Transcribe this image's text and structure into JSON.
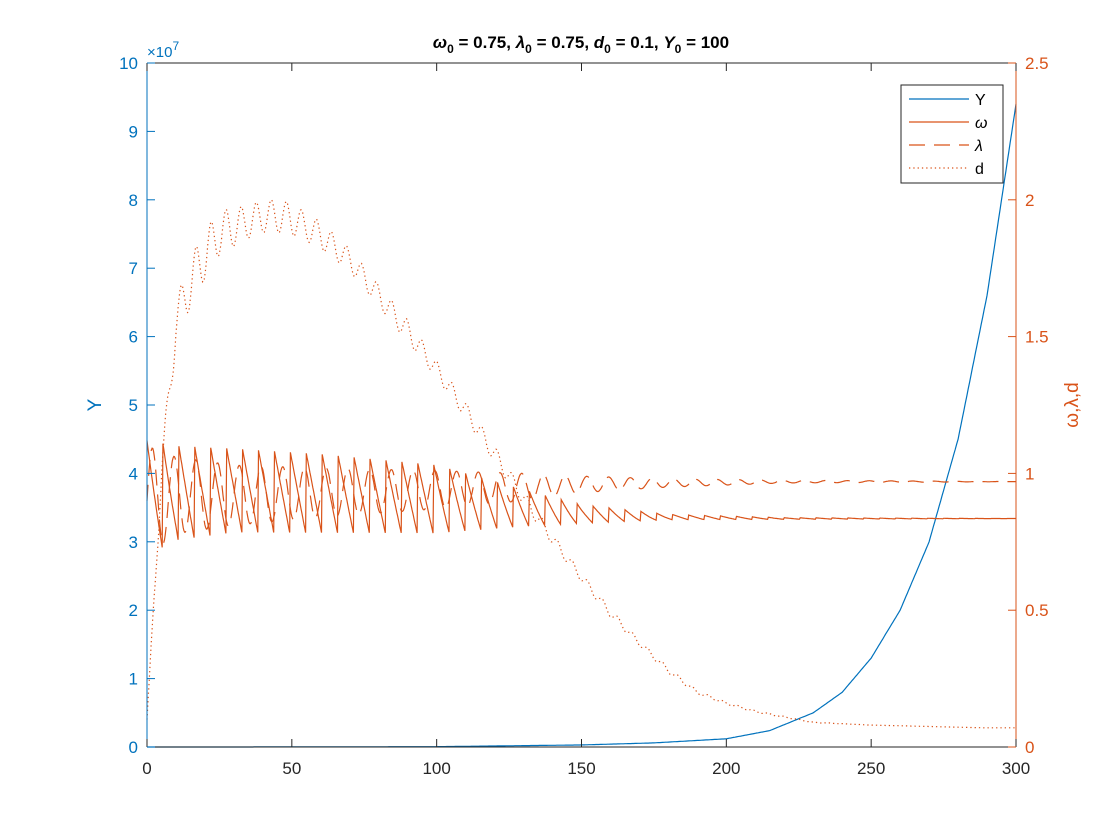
{
  "chart_data": {
    "type": "line",
    "title_parts": [
      {
        "sym": "ω",
        "sub": "0",
        "rest": " = 0.75, "
      },
      {
        "sym": "λ",
        "sub": "0",
        "rest": " = 0.75, "
      },
      {
        "sym": "d",
        "sub": "0",
        "rest": " = 0.1, "
      },
      {
        "sym": "Y",
        "sub": "0",
        "rest": " = 100"
      }
    ],
    "xlim": [
      0,
      300
    ],
    "x_ticks": [
      0,
      50,
      100,
      150,
      200,
      250,
      300
    ],
    "y_left": {
      "label": "Y",
      "lim": [
        0,
        10
      ],
      "ticks": [
        0,
        1,
        2,
        3,
        4,
        5,
        6,
        7,
        8,
        9,
        10
      ],
      "exponent_label": "×10",
      "exponent_power": "7",
      "color": "#0072BD"
    },
    "y_right": {
      "label": "ω,λ,d",
      "lim": [
        0,
        2.5
      ],
      "ticks": [
        "0",
        "0.5",
        "1",
        "1.5",
        "2",
        "2.5"
      ],
      "color": "#D95319"
    },
    "legend_position": "top-right",
    "grid": false,
    "series": [
      {
        "name": "Y",
        "axis": "left",
        "style": "solid",
        "color": "#0072BD",
        "x": [
          0,
          50,
          100,
          150,
          175,
          200,
          215,
          230,
          240,
          250,
          260,
          270,
          280,
          290,
          300
        ],
        "y": [
          0,
          0.001,
          0.005,
          0.03,
          0.06,
          0.12,
          0.24,
          0.5,
          0.8,
          1.3,
          2.0,
          3.0,
          4.5,
          6.6,
          9.4
        ]
      },
      {
        "name": "ω",
        "axis": "right",
        "style": "solid",
        "color": "#D95319",
        "x": [
          0,
          10,
          30,
          60,
          100,
          130,
          150,
          180,
          220,
          300
        ],
        "center": [
          0.9,
          0.92,
          0.93,
          0.92,
          0.9,
          0.87,
          0.85,
          0.84,
          0.835,
          0.835
        ],
        "amplitude": [
          0.22,
          0.18,
          0.16,
          0.15,
          0.13,
          0.07,
          0.035,
          0.01,
          0.003,
          0
        ]
      },
      {
        "name": "λ",
        "axis": "right",
        "style": "dashed",
        "color": "#D95319",
        "x": [
          0,
          10,
          30,
          60,
          100,
          130,
          150,
          180,
          220,
          300
        ],
        "center": [
          0.9,
          0.92,
          0.92,
          0.93,
          0.94,
          0.95,
          0.96,
          0.965,
          0.97,
          0.97
        ],
        "amplitude": [
          0.2,
          0.14,
          0.11,
          0.09,
          0.07,
          0.05,
          0.03,
          0.015,
          0.005,
          0
        ]
      },
      {
        "name": "d",
        "axis": "right",
        "style": "dotted",
        "color": "#D95319",
        "x": [
          0,
          5,
          10,
          15,
          20,
          25,
          30,
          35,
          40,
          45,
          50,
          55,
          60,
          70,
          80,
          90,
          100,
          110,
          120,
          130,
          140,
          150,
          160,
          170,
          180,
          190,
          200,
          210,
          220,
          230,
          250,
          270,
          290,
          300
        ],
        "y": [
          0.1,
          1.0,
          1.55,
          1.7,
          1.8,
          1.88,
          1.9,
          1.92,
          1.94,
          1.94,
          1.93,
          1.9,
          1.87,
          1.78,
          1.65,
          1.52,
          1.38,
          1.23,
          1.07,
          0.91,
          0.76,
          0.62,
          0.49,
          0.38,
          0.28,
          0.2,
          0.16,
          0.13,
          0.11,
          0.09,
          0.08,
          0.075,
          0.07,
          0.07
        ],
        "amplitude": [
          0,
          0.05,
          0.08,
          0.09,
          0.09,
          0.08,
          0.07,
          0.06,
          0.06,
          0.06,
          0.06,
          0.05,
          0.05,
          0.04,
          0.04,
          0.04,
          0.03,
          0.03,
          0.03,
          0.025,
          0.02,
          0.015,
          0.015,
          0.01,
          0.01,
          0.006,
          0.004,
          0.003,
          0.002,
          0.001,
          0,
          0,
          0,
          0
        ]
      }
    ]
  }
}
